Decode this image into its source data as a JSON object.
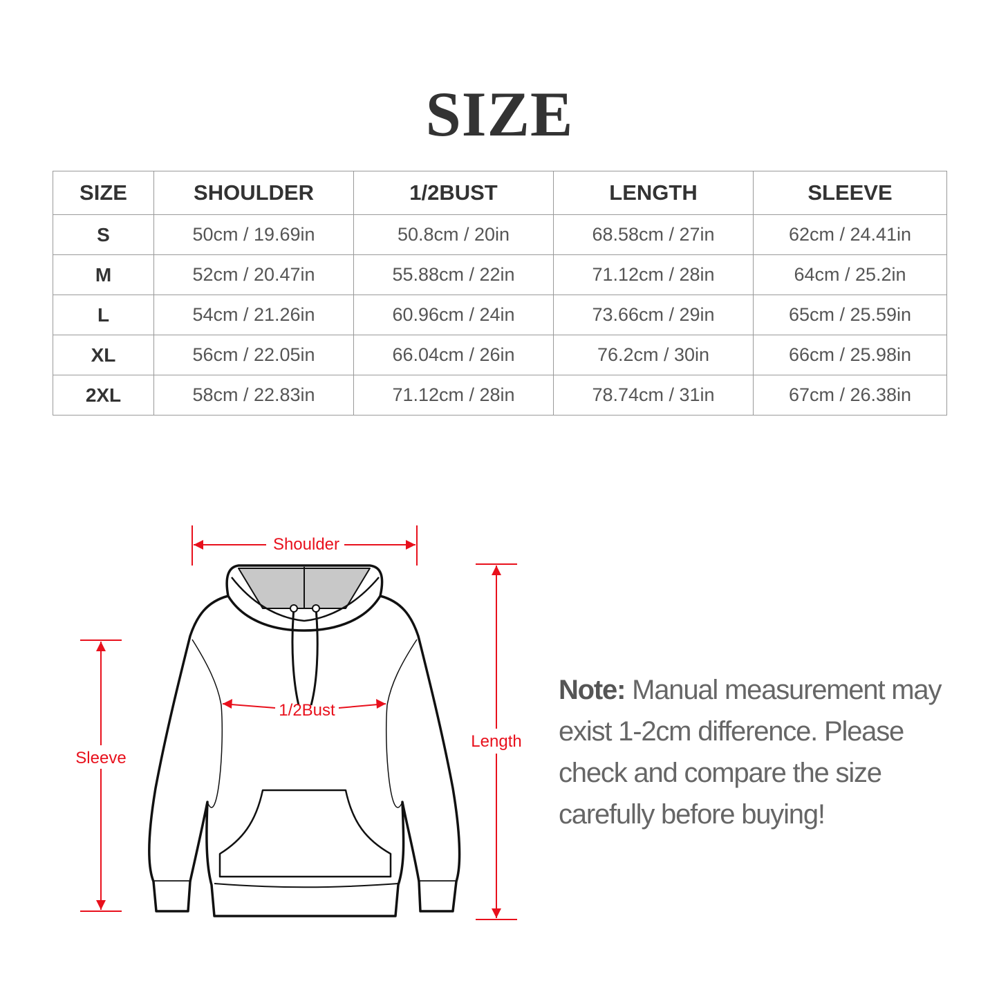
{
  "title": "SIZE",
  "table": {
    "headers": [
      "SIZE",
      "SHOULDER",
      "1/2BUST",
      "LENGTH",
      "SLEEVE"
    ],
    "rows": [
      [
        "S",
        "50cm / 19.69in",
        "50.8cm / 20in",
        "68.58cm / 27in",
        "62cm / 24.41in"
      ],
      [
        "M",
        "52cm / 20.47in",
        "55.88cm / 22in",
        "71.12cm / 28in",
        "64cm / 25.2in"
      ],
      [
        "L",
        "54cm / 21.26in",
        "60.96cm / 24in",
        "73.66cm / 29in",
        "65cm / 25.59in"
      ],
      [
        "XL",
        "56cm / 22.05in",
        "66.04cm / 26in",
        "76.2cm / 30in",
        "66cm / 25.98in"
      ],
      [
        "2XL",
        "58cm / 22.83in",
        "71.12cm / 28in",
        "78.74cm / 31in",
        "67cm / 26.38in"
      ]
    ]
  },
  "diagram": {
    "labels": {
      "shoulder": "Shoulder",
      "bust": "1/2Bust",
      "sleeve": "Sleeve",
      "length": "Length"
    },
    "accent_color": "#e8101c",
    "icon": "hoodie-illustration"
  },
  "note": {
    "label": "Note:",
    "text": " Manual measurement may exist 1-2cm difference. Please check and compare the size carefully before buying!"
  }
}
